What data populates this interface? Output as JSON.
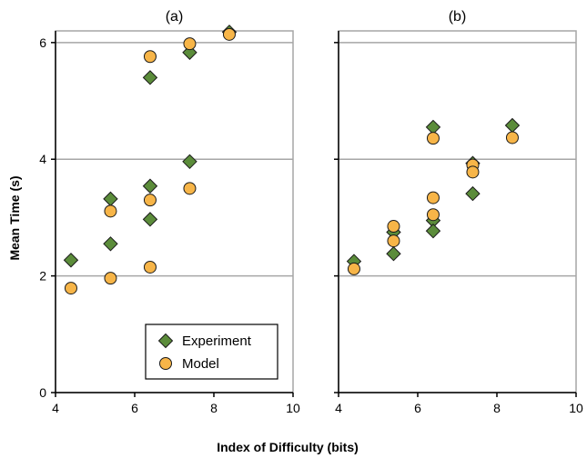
{
  "chart_data": {
    "type": "scatter",
    "xlabel": "Index of Difficulty (bits)",
    "ylabel": "Mean Time (s)",
    "xlim": [
      4,
      10
    ],
    "ylim": [
      0,
      6.2
    ],
    "x_ticks": [
      "4",
      "6",
      "8",
      "10"
    ],
    "y_ticks": [
      "0",
      "2",
      "4",
      "6"
    ],
    "y_tick_values": [
      0,
      2,
      4,
      6
    ],
    "x_tick_values": [
      4,
      6,
      8,
      10
    ],
    "grid": "horizontal",
    "legend": {
      "placement": "bottom-left",
      "entries": [
        "Experiment",
        "Model"
      ]
    },
    "colors": {
      "experiment": "#5b8c3a",
      "model": "#f7b548",
      "grid": "#a6a6a6"
    },
    "panels": [
      {
        "label": "(a)",
        "series": [
          {
            "name": "Experiment",
            "marker": "diamond",
            "points": [
              {
                "x": 4.39,
                "y": 2.27
              },
              {
                "x": 5.39,
                "y": 3.32
              },
              {
                "x": 5.39,
                "y": 2.55
              },
              {
                "x": 6.39,
                "y": 5.4
              },
              {
                "x": 6.39,
                "y": 3.54
              },
              {
                "x": 6.39,
                "y": 2.97
              },
              {
                "x": 7.39,
                "y": 5.83
              },
              {
                "x": 7.39,
                "y": 3.96
              },
              {
                "x": 8.39,
                "y": 6.18
              }
            ]
          },
          {
            "name": "Model",
            "marker": "circle",
            "points": [
              {
                "x": 4.39,
                "y": 1.79
              },
              {
                "x": 5.39,
                "y": 3.11
              },
              {
                "x": 5.39,
                "y": 1.96
              },
              {
                "x": 6.39,
                "y": 5.76
              },
              {
                "x": 6.39,
                "y": 3.3
              },
              {
                "x": 6.39,
                "y": 2.15
              },
              {
                "x": 7.39,
                "y": 5.98
              },
              {
                "x": 7.39,
                "y": 3.5
              },
              {
                "x": 8.39,
                "y": 6.14
              }
            ]
          }
        ]
      },
      {
        "label": "(b)",
        "series": [
          {
            "name": "Experiment",
            "marker": "diamond",
            "points": [
              {
                "x": 4.39,
                "y": 2.25
              },
              {
                "x": 5.39,
                "y": 2.75
              },
              {
                "x": 5.39,
                "y": 2.38
              },
              {
                "x": 6.39,
                "y": 4.55
              },
              {
                "x": 6.39,
                "y": 2.95
              },
              {
                "x": 6.39,
                "y": 2.77
              },
              {
                "x": 7.39,
                "y": 3.93
              },
              {
                "x": 7.39,
                "y": 3.41
              },
              {
                "x": 8.39,
                "y": 4.58
              }
            ]
          },
          {
            "name": "Model",
            "marker": "circle",
            "points": [
              {
                "x": 4.39,
                "y": 2.12
              },
              {
                "x": 5.39,
                "y": 2.85
              },
              {
                "x": 5.39,
                "y": 2.6
              },
              {
                "x": 6.39,
                "y": 4.36
              },
              {
                "x": 6.39,
                "y": 3.34
              },
              {
                "x": 6.39,
                "y": 3.05
              },
              {
                "x": 7.39,
                "y": 3.9
              },
              {
                "x": 7.39,
                "y": 3.78
              },
              {
                "x": 8.39,
                "y": 4.37
              }
            ]
          }
        ]
      }
    ]
  }
}
